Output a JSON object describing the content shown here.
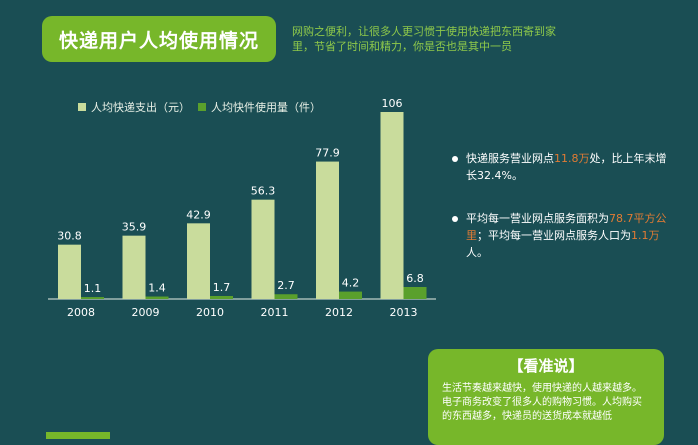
{
  "header": {
    "title": "快递用户人均使用情况",
    "subtitle": "网购之便利，让很多人更习惯于使用快递把东西寄到家里，节省了时间和精力，你是否也是其中一员"
  },
  "legend": [
    {
      "label": "人均快递支出（元）",
      "color": "#c9dc9c"
    },
    {
      "label": "人均快件使用量（件）",
      "color": "#5aa02c"
    }
  ],
  "chart_data": {
    "type": "bar",
    "categories": [
      "2008",
      "2009",
      "2010",
      "2011",
      "2012",
      "2013"
    ],
    "series": [
      {
        "name": "人均快递支出（元）",
        "values": [
          30.8,
          35.9,
          42.9,
          56.3,
          77.9,
          106
        ],
        "color": "#c9dc9c"
      },
      {
        "name": "人均快件使用量（件）",
        "values": [
          1.1,
          1.4,
          1.7,
          2.7,
          4.2,
          6.8
        ],
        "color": "#5aa02c"
      }
    ],
    "ylim": [
      0,
      106
    ],
    "grid": false,
    "legend_position": "top-left"
  },
  "bullets": [
    {
      "pre": "快递服务营业网点",
      "hl": "11.8万",
      "post": "处，比上年末增长32.4%。"
    },
    {
      "pre": "平均每一营业网点服务面积为",
      "hl": "78.7平方公里",
      "post": "；平均每一营业网点服务人口为",
      "hl2": "1.1万",
      "post2": "人。"
    }
  ],
  "review": {
    "title": "【看准说】",
    "body": "生活节奏越来越快，使用快递的人越来越多。电子商务改变了很多人的购物习惯。人均购买的东西越多，快递员的送货成本就越低"
  }
}
